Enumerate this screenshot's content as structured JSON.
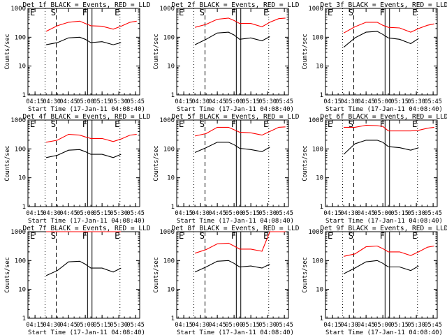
{
  "figure": {
    "x_ticks": [
      "04:15",
      "04:30",
      "04:45",
      "05:00",
      "05:15",
      "05:30",
      "05:45"
    ],
    "y_ticks": [
      "1",
      "10",
      "100",
      "1000"
    ],
    "xlabel": "Start Time (17-Jan-11 04:08:40)",
    "ylabel": "Counts/sec",
    "marker_labels": {
      "E": "E",
      "S": "S",
      "F": "F"
    },
    "colors": {
      "events": "#000000",
      "lld": "#ff0000"
    }
  },
  "chart_data": [
    {
      "type": "line",
      "title": "Det 1f BLACK = Events, RED = LLD",
      "xlabel": "Start Time (17-Jan-11 04:08:40)",
      "ylabel": "Counts/sec",
      "y_scale": "log",
      "ylim": [
        1,
        1000
      ],
      "xlim": [
        "04:08:40",
        "05:48:40"
      ],
      "x": [
        "04:25",
        "04:35",
        "04:45",
        "04:55",
        "05:00",
        "05:05",
        "05:15",
        "05:25",
        "05:32",
        "05:40",
        "05:46"
      ],
      "series": [
        {
          "name": "Events",
          "color": "black",
          "start_index": 0,
          "end_index": 8,
          "values": [
            55,
            65,
            95,
            100,
            85,
            65,
            70,
            55,
            65,
            null,
            null
          ]
        },
        {
          "name": "LLD",
          "color": "red",
          "start_index": 0,
          "end_index": 10,
          "values": [
            160,
            250,
            330,
            360,
            300,
            250,
            240,
            190,
            240,
            330,
            360
          ]
        }
      ]
    },
    {
      "type": "line",
      "title": "Det 2f BLACK = Events, RED = LLD",
      "xlabel": "Start Time (17-Jan-11 04:08:40)",
      "ylabel": "Counts/sec",
      "y_scale": "log",
      "ylim": [
        1,
        1000
      ],
      "xlim": [
        "04:08:40",
        "05:48:40"
      ],
      "x": [
        "04:25",
        "04:35",
        "04:45",
        "04:55",
        "05:00",
        "05:05",
        "05:15",
        "05:25",
        "05:32",
        "05:40",
        "05:46"
      ],
      "series": [
        {
          "name": "Events",
          "color": "black",
          "start_index": 0,
          "end_index": 8,
          "values": [
            55,
            85,
            140,
            150,
            120,
            85,
            95,
            75,
            105,
            null,
            null
          ]
        },
        {
          "name": "LLD",
          "color": "red",
          "start_index": 0,
          "end_index": 10,
          "values": [
            220,
            280,
            420,
            460,
            380,
            300,
            300,
            230,
            330,
            440,
            460
          ]
        }
      ]
    },
    {
      "type": "line",
      "title": "Det 3f BLACK = Events, RED = LLD",
      "xlabel": "Start Time (17-Jan-11 04:08:40)",
      "ylabel": "Counts/sec",
      "y_scale": "log",
      "ylim": [
        1,
        1000
      ],
      "xlim": [
        "04:08:40",
        "05:48:40"
      ],
      "x": [
        "04:25",
        "04:35",
        "04:45",
        "04:55",
        "05:00",
        "05:05",
        "05:15",
        "05:25",
        "05:32",
        "05:40",
        "05:46"
      ],
      "series": [
        {
          "name": "Events",
          "color": "black",
          "start_index": 0,
          "end_index": 8,
          "values": [
            45,
            95,
            150,
            160,
            125,
            95,
            85,
            60,
            90,
            null,
            null
          ]
        },
        {
          "name": "LLD",
          "color": "red",
          "start_index": 0,
          "end_index": 10,
          "values": [
            140,
            230,
            330,
            330,
            260,
            220,
            210,
            150,
            200,
            260,
            290
          ]
        }
      ]
    },
    {
      "type": "line",
      "title": "Det 4f BLACK = Events, RED = LLD",
      "xlabel": "Start Time (17-Jan-11 04:08:40)",
      "ylabel": "Counts/sec",
      "y_scale": "log",
      "ylim": [
        1,
        1000
      ],
      "xlim": [
        "04:08:40",
        "05:48:40"
      ],
      "x": [
        "04:25",
        "04:35",
        "04:45",
        "04:55",
        "05:00",
        "05:05",
        "05:15",
        "05:25",
        "05:32",
        "05:40",
        "05:46"
      ],
      "series": [
        {
          "name": "Events",
          "color": "black",
          "start_index": 0,
          "end_index": 8,
          "values": [
            50,
            60,
            90,
            95,
            80,
            65,
            65,
            50,
            65,
            null,
            null
          ]
        },
        {
          "name": "LLD",
          "color": "red",
          "start_index": 0,
          "end_index": 10,
          "values": [
            170,
            200,
            320,
            300,
            260,
            230,
            230,
            180,
            220,
            300,
            320
          ]
        }
      ]
    },
    {
      "type": "line",
      "title": "Det 5f BLACK = Events, RED = LLD",
      "xlabel": "Start Time (17-Jan-11 04:08:40)",
      "ylabel": "Counts/sec",
      "y_scale": "log",
      "ylim": [
        1,
        1000
      ],
      "xlim": [
        "04:08:40",
        "05:48:40"
      ],
      "x": [
        "04:25",
        "04:35",
        "04:45",
        "04:55",
        "05:00",
        "05:05",
        "05:15",
        "05:25",
        "05:32",
        "05:40",
        "05:46"
      ],
      "series": [
        {
          "name": "Events",
          "color": "black",
          "start_index": 0,
          "end_index": 8,
          "values": [
            75,
            110,
            170,
            170,
            140,
            105,
            95,
            80,
            115,
            null,
            null
          ]
        },
        {
          "name": "LLD",
          "color": "red",
          "start_index": 0,
          "end_index": 10,
          "values": [
            280,
            340,
            560,
            560,
            460,
            380,
            360,
            300,
            400,
            560,
            580
          ]
        }
      ]
    },
    {
      "type": "line",
      "title": "Det 6f BLACK = Events, RED = LLD",
      "xlabel": "Start Time (17-Jan-11 04:08:40)",
      "ylabel": "Counts/sec",
      "y_scale": "log",
      "ylim": [
        1,
        1000
      ],
      "xlim": [
        "04:08:40",
        "05:48:40"
      ],
      "x": [
        "04:25",
        "04:35",
        "04:45",
        "04:55",
        "05:00",
        "05:05",
        "05:15",
        "05:25",
        "05:32",
        "05:40",
        "05:46"
      ],
      "series": [
        {
          "name": "Events",
          "color": "black",
          "start_index": 0,
          "end_index": 8,
          "values": [
            65,
            150,
            200,
            200,
            170,
            120,
            110,
            90,
            110,
            null,
            null
          ]
        },
        {
          "name": "LLD",
          "color": "red",
          "start_index": 0,
          "end_index": 10,
          "values": [
            560,
            560,
            660,
            640,
            600,
            420,
            420,
            420,
            440,
            520,
            560
          ]
        }
      ]
    },
    {
      "type": "line",
      "title": "Det 7f BLACK = Events, RED = LLD",
      "xlabel": "Start Time (17-Jan-11 04:08:40)",
      "ylabel": "Counts/sec",
      "y_scale": "log",
      "ylim": [
        1,
        1000
      ],
      "xlim": [
        "04:08:40",
        "05:48:40"
      ],
      "x": [
        "04:25",
        "04:35",
        "04:45",
        "04:55",
        "05:00",
        "05:05",
        "05:15",
        "05:25",
        "05:32",
        "05:40",
        "05:46"
      ],
      "series": [
        {
          "name": "Events",
          "color": "black",
          "start_index": 0,
          "end_index": 8,
          "values": [
            30,
            45,
            90,
            95,
            75,
            55,
            55,
            40,
            55,
            null,
            null
          ]
        },
        {
          "name": "LLD",
          "color": "red",
          "start_index": 0,
          "end_index": 8,
          "values": [
            1000,
            1000,
            1000,
            1000,
            1000,
            1000,
            1000,
            1000,
            1000,
            null,
            null
          ]
        }
      ]
    },
    {
      "type": "line",
      "title": "Det 8f BLACK = Events, RED = LLD",
      "xlabel": "Start Time (17-Jan-11 04:08:40)",
      "ylabel": "Counts/sec",
      "y_scale": "log",
      "ylim": [
        1,
        1000
      ],
      "xlim": [
        "04:08:40",
        "05:48:40"
      ],
      "x": [
        "04:25",
        "04:35",
        "04:45",
        "04:55",
        "05:00",
        "05:05",
        "05:15",
        "05:25",
        "05:32",
        "05:40",
        "05:46"
      ],
      "series": [
        {
          "name": "Events",
          "color": "black",
          "start_index": 0,
          "end_index": 8,
          "values": [
            40,
            60,
            95,
            100,
            80,
            60,
            65,
            55,
            75,
            null,
            null
          ]
        },
        {
          "name": "LLD",
          "color": "red",
          "start_index": 0,
          "end_index": 10,
          "values": [
            180,
            240,
            380,
            400,
            320,
            250,
            250,
            210,
            1000,
            1000,
            1000
          ]
        }
      ]
    },
    {
      "type": "line",
      "title": "Det 9f BLACK = Events, RED = LLD",
      "xlabel": "Start Time (17-Jan-11 04:08:40)",
      "ylabel": "Counts/sec",
      "y_scale": "log",
      "ylim": [
        1,
        1000
      ],
      "xlim": [
        "04:08:40",
        "05:48:40"
      ],
      "x": [
        "04:25",
        "04:35",
        "04:45",
        "04:55",
        "05:00",
        "05:05",
        "05:15",
        "05:25",
        "05:32",
        "05:40",
        "05:46"
      ],
      "series": [
        {
          "name": "Events",
          "color": "black",
          "start_index": 0,
          "end_index": 8,
          "values": [
            35,
            55,
            90,
            100,
            80,
            60,
            60,
            45,
            65,
            null,
            null
          ]
        },
        {
          "name": "LLD",
          "color": "red",
          "start_index": 0,
          "end_index": 10,
          "values": [
            140,
            170,
            300,
            320,
            260,
            200,
            200,
            150,
            200,
            290,
            320
          ]
        }
      ]
    }
  ]
}
